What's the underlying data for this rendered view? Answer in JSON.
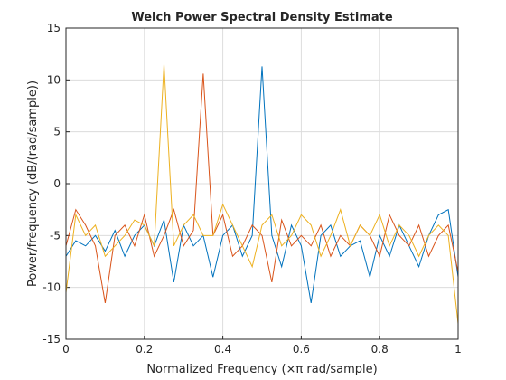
{
  "chart_data": {
    "type": "line",
    "title": "Welch Power Spectral Density Estimate",
    "x_label": "Normalized Frequency  (×π rad/sample)",
    "y_label": "Power/frequency (dB/(rad/sample))",
    "x": [
      0,
      0.025,
      0.05,
      0.075,
      0.1,
      0.125,
      0.15,
      0.175,
      0.2,
      0.225,
      0.25,
      0.275,
      0.3,
      0.325,
      0.35,
      0.375,
      0.4,
      0.425,
      0.45,
      0.475,
      0.5,
      0.525,
      0.55,
      0.575,
      0.6,
      0.625,
      0.65,
      0.675,
      0.7,
      0.725,
      0.75,
      0.775,
      0.8,
      0.825,
      0.85,
      0.875,
      0.9,
      0.925,
      0.95,
      0.975,
      1
    ],
    "series": [
      {
        "color": "#0072bd",
        "values": [
          -7,
          -5.5,
          -6,
          -5,
          -6.5,
          -4.5,
          -7,
          -5,
          -4,
          -6,
          -3.5,
          -9.5,
          -4,
          -6,
          -5,
          -9,
          -5,
          -4,
          -7,
          -5,
          11.3,
          -5,
          -8,
          -4,
          -6,
          -11.5,
          -5,
          -4,
          -7,
          -6,
          -5.5,
          -9,
          -5,
          -7,
          -4,
          -6,
          -8,
          -5,
          -3,
          -2.5,
          -9
        ]
      },
      {
        "color": "#d95319",
        "values": [
          -6,
          -2.5,
          -4,
          -6,
          -11.5,
          -5,
          -4,
          -6,
          -3,
          -7,
          -5,
          -2.5,
          -6,
          -4.5,
          10.6,
          -5,
          -3,
          -7,
          -6,
          -4,
          -5,
          -9.5,
          -3.5,
          -6,
          -5,
          -6,
          -4,
          -7,
          -5,
          -6,
          -4,
          -5,
          -7,
          -3,
          -5,
          -6,
          -4,
          -7,
          -5,
          -4,
          -8.5
        ]
      },
      {
        "color": "#edb120",
        "values": [
          -10.5,
          -3,
          -5,
          -4,
          -7,
          -6,
          -5,
          -3.5,
          -4,
          -6,
          11.5,
          -6,
          -4,
          -3,
          -5,
          -5,
          -2,
          -4,
          -6,
          -8,
          -4,
          -3,
          -6,
          -5,
          -3,
          -4,
          -7,
          -5,
          -2.5,
          -6,
          -4,
          -5,
          -3,
          -6,
          -4,
          -5,
          -7,
          -5,
          -4,
          -5,
          -13.5
        ]
      }
    ],
    "xlim": [
      0,
      1
    ],
    "xticks": [
      0,
      0.2,
      0.4,
      0.6,
      0.8,
      1
    ],
    "ylim": [
      -15,
      15
    ],
    "yticks": [
      -15,
      -10,
      -5,
      0,
      5,
      10,
      15
    ],
    "grid": true
  }
}
